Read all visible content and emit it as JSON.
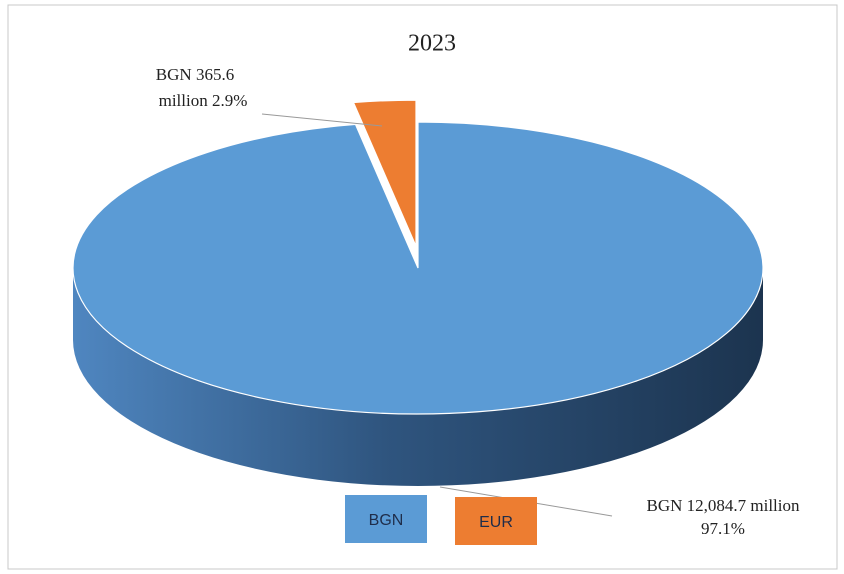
{
  "chart_data": {
    "type": "pie3d",
    "title": "2023",
    "categories": [
      "BGN",
      "EUR"
    ],
    "values": [
      97.1,
      2.9
    ],
    "value_labels": [
      [
        "BGN 12,084.7 million",
        "97.1%"
      ],
      [
        "BGN 365.6",
        "million 2.9%"
      ]
    ],
    "colors": [
      "#5b9bd5",
      "#ed7d31"
    ]
  }
}
